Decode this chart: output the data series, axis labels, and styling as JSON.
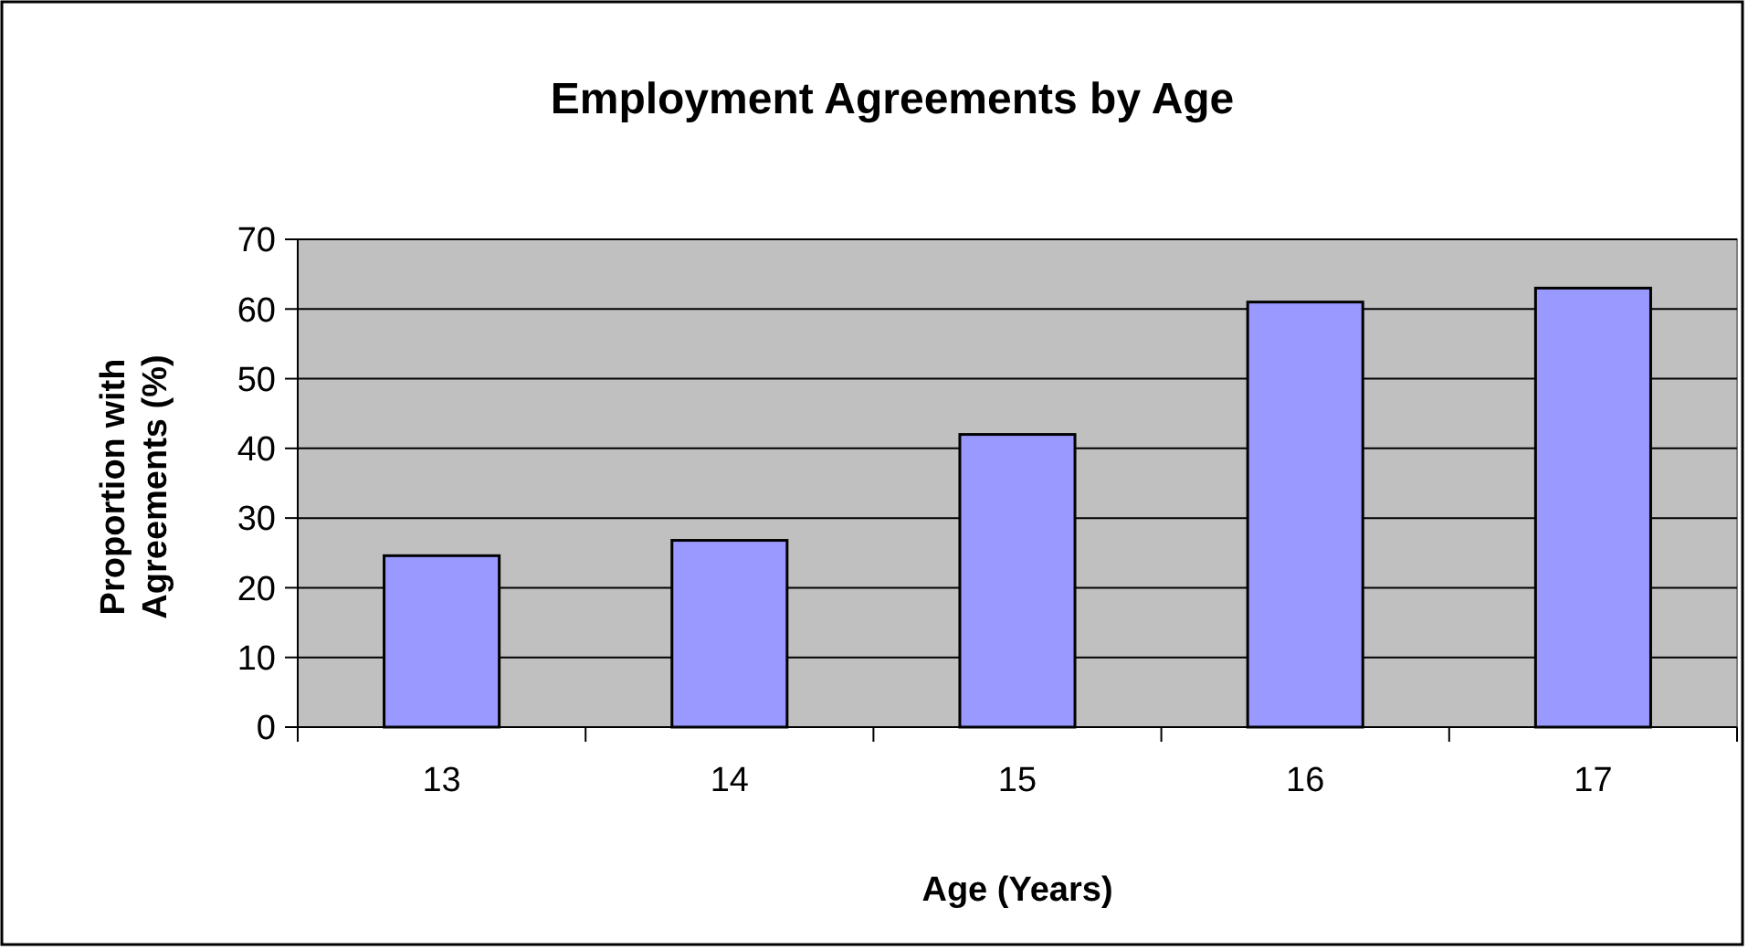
{
  "chart_data": {
    "type": "bar",
    "title": "Employment Agreements by Age",
    "xlabel": "Age (Years)",
    "ylabel": "Proportion with Agreements (%)",
    "categories": [
      "13",
      "14",
      "15",
      "16",
      "17"
    ],
    "values": [
      24.6,
      26.8,
      42,
      61,
      63
    ],
    "color": "#9999ff",
    "ylim": [
      0,
      70
    ],
    "yticks": [
      0,
      10,
      20,
      30,
      40,
      50,
      60,
      70
    ],
    "grid": "y"
  }
}
